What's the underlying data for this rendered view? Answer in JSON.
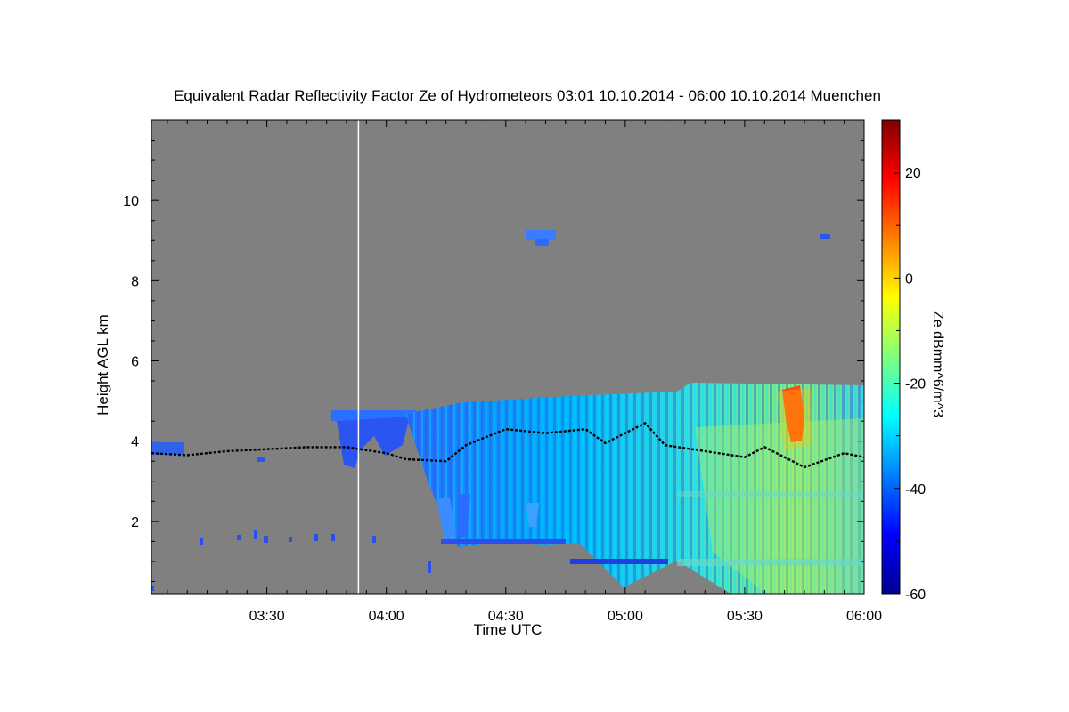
{
  "chart_data": {
    "type": "heatmap",
    "title": "Equivalent Radar Reflectivity Factor Ze of Hydrometeors   03:01 10.10.2014 - 06:00 10.10.2014 Muenchen",
    "xlabel": "Time UTC",
    "ylabel": "Height AGL km",
    "xlim": [
      "03:01",
      "06:00"
    ],
    "ylim": [
      0.2,
      12
    ],
    "x_ticks": [
      "03:30",
      "04:00",
      "04:30",
      "05:00",
      "05:30",
      "06:00"
    ],
    "y_ticks": [
      2,
      4,
      6,
      8,
      10
    ],
    "colorbar": {
      "label": "Ze dBmm^6/m^3",
      "range": [
        -60,
        30
      ],
      "ticks": [
        20,
        0,
        -20,
        -40,
        -60
      ],
      "colormap": "jet"
    },
    "background_color": "#808080",
    "missing_data_line_time": "03:53",
    "cloud_base_series": [
      {
        "t": "03:01",
        "h": 3.7
      },
      {
        "t": "03:10",
        "h": 3.65
      },
      {
        "t": "03:20",
        "h": 3.75
      },
      {
        "t": "03:30",
        "h": 3.8
      },
      {
        "t": "03:40",
        "h": 3.85
      },
      {
        "t": "03:50",
        "h": 3.85
      },
      {
        "t": "04:00",
        "h": 3.7
      },
      {
        "t": "04:05",
        "h": 3.55
      },
      {
        "t": "04:15",
        "h": 3.5
      },
      {
        "t": "04:20",
        "h": 3.9
      },
      {
        "t": "04:30",
        "h": 4.3
      },
      {
        "t": "04:40",
        "h": 4.2
      },
      {
        "t": "04:50",
        "h": 4.3
      },
      {
        "t": "04:55",
        "h": 3.95
      },
      {
        "t": "05:05",
        "h": 4.45
      },
      {
        "t": "05:10",
        "h": 3.9
      },
      {
        "t": "05:20",
        "h": 3.75
      },
      {
        "t": "05:30",
        "h": 3.6
      },
      {
        "t": "05:35",
        "h": 3.85
      },
      {
        "t": "05:45",
        "h": 3.35
      },
      {
        "t": "05:55",
        "h": 3.7
      },
      {
        "t": "06:00",
        "h": 3.6
      }
    ]
  }
}
